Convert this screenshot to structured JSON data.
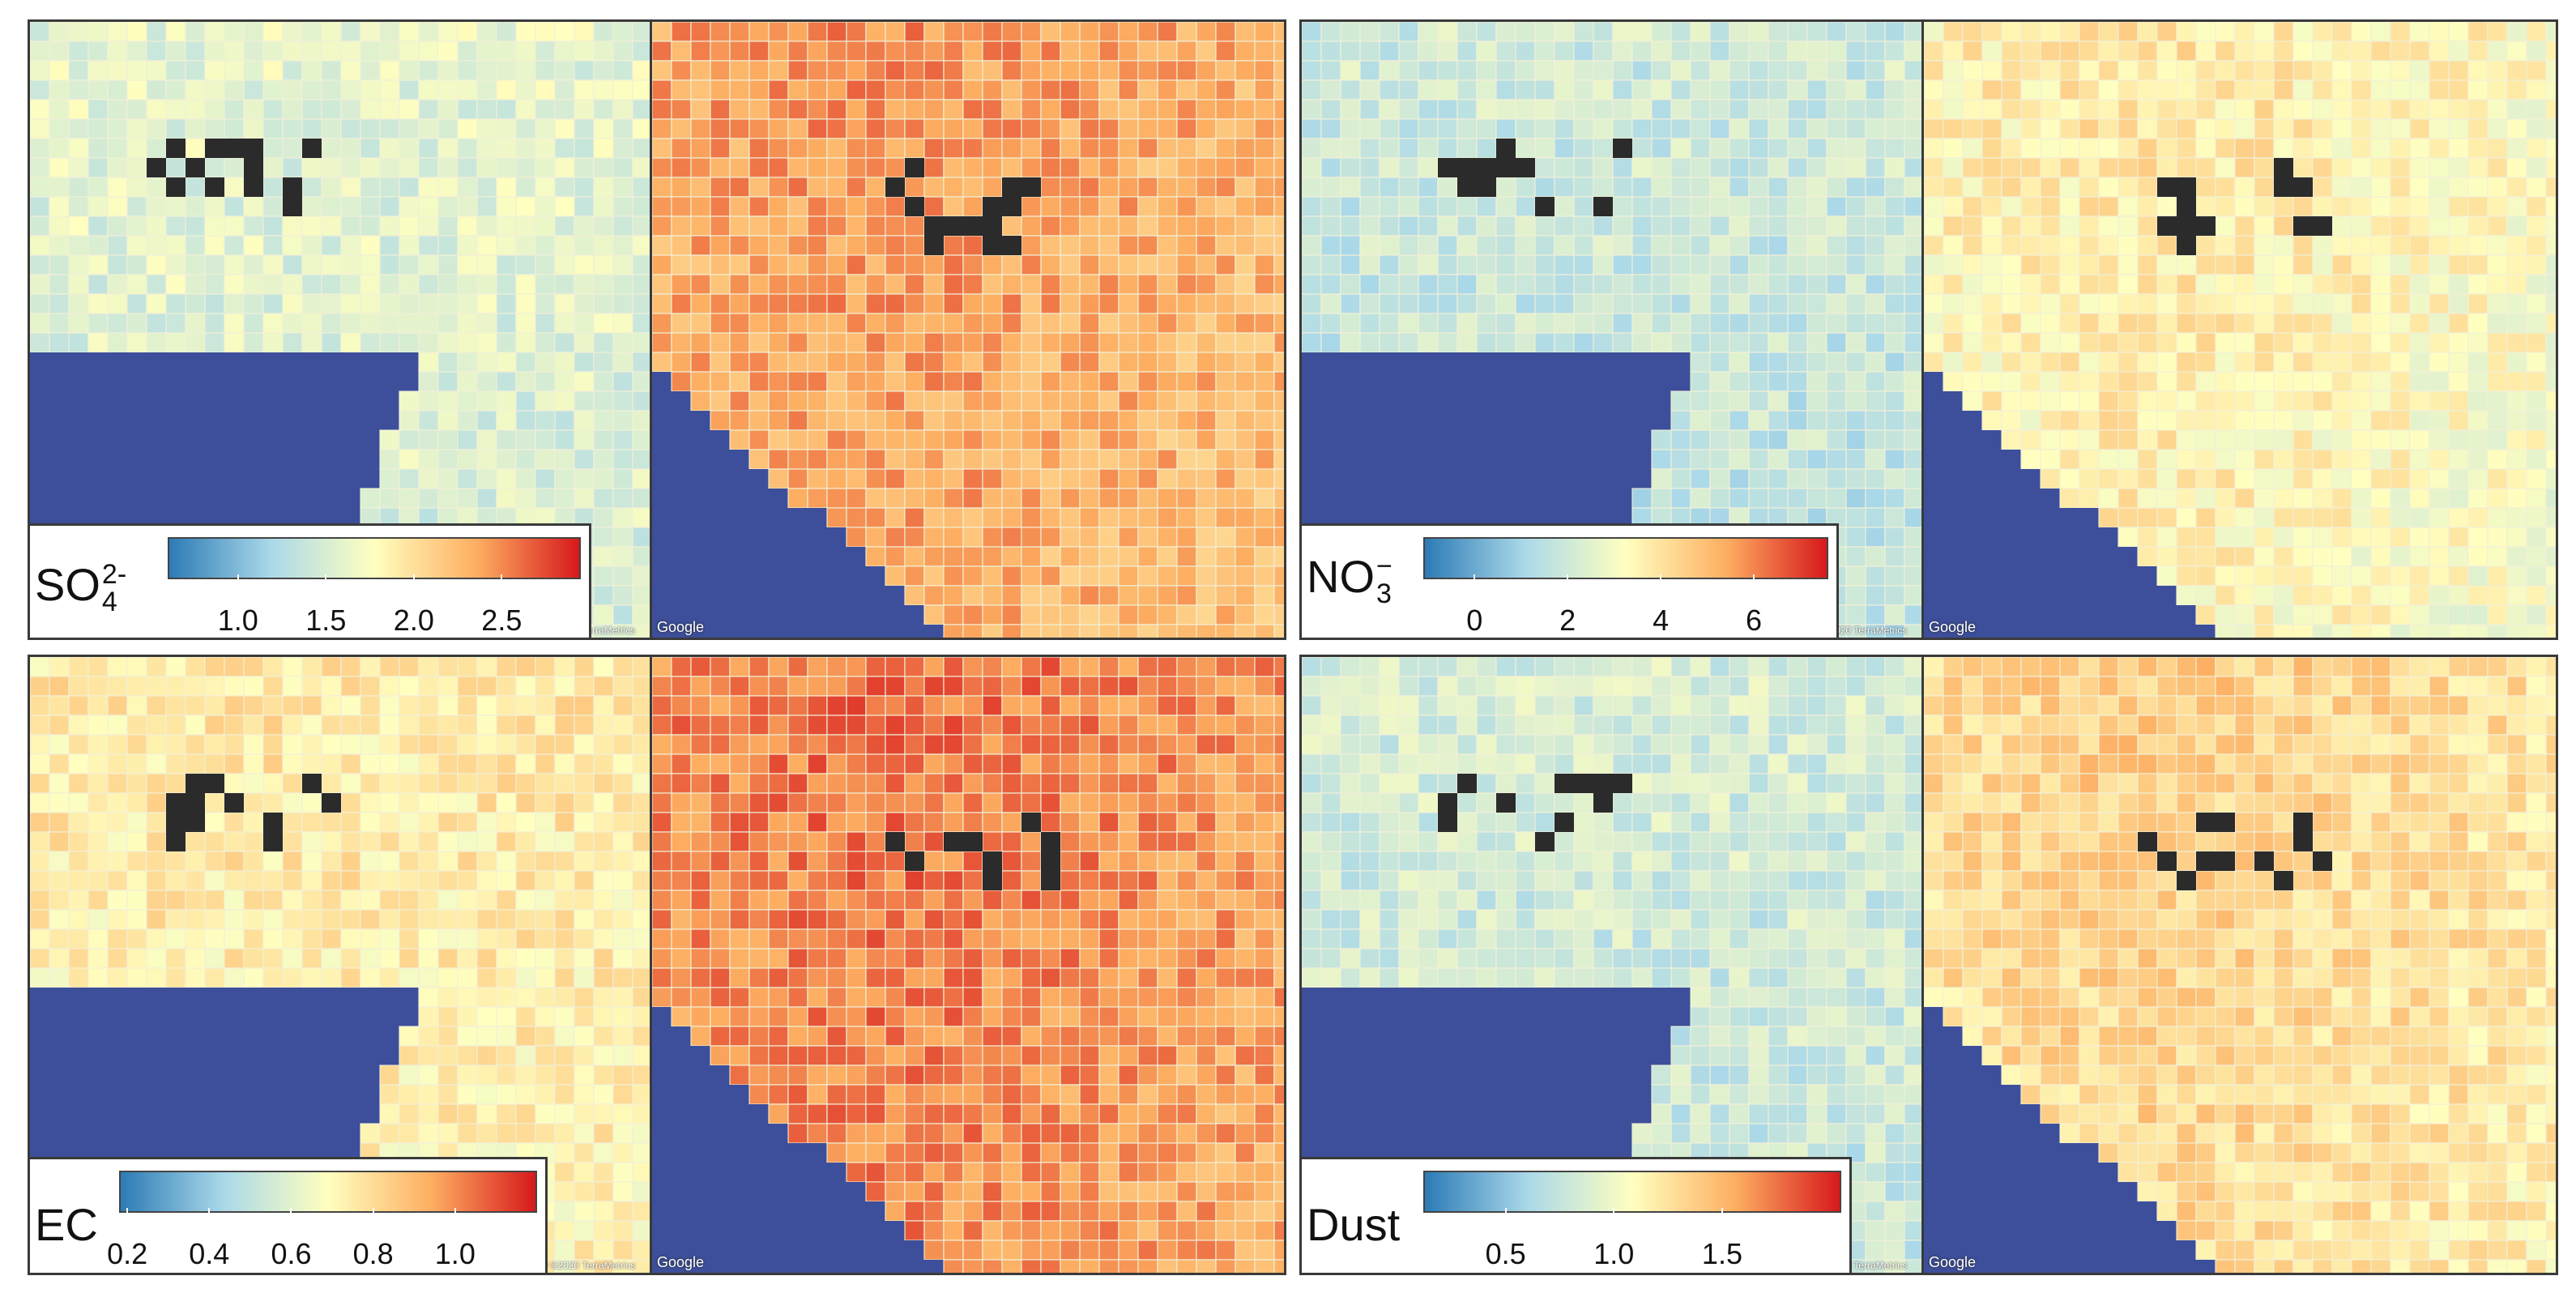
{
  "panels": [
    {
      "id": "so4",
      "name_main": "SO",
      "name_sub": "4",
      "name_sup": "2-",
      "ticks": [
        "1.0",
        "1.5",
        "2.0",
        "2.5"
      ],
      "tick_values": [
        1.0,
        1.5,
        2.0,
        2.5
      ],
      "range": [
        0.6,
        2.95
      ],
      "left_level": 0.4,
      "right_level": 0.72,
      "attribution": "Imagery ©2020 TerraMetrics",
      "map_credit": "Google"
    },
    {
      "id": "no3",
      "name_main": "NO",
      "name_sub": "3",
      "name_sup": "−",
      "ticks": [
        "0",
        "2",
        "4",
        "6"
      ],
      "tick_values": [
        0,
        2,
        4,
        6
      ],
      "range": [
        -1.1,
        7.6
      ],
      "left_level": 0.33,
      "right_level": 0.5,
      "attribution": "Imagery ©2020 TerraMetrics",
      "map_credit": "Google"
    },
    {
      "id": "ec",
      "name_main": "EC",
      "name_sub": "",
      "name_sup": "",
      "ticks": [
        "0.2",
        "0.4",
        "0.6",
        "0.8",
        "1.0"
      ],
      "tick_values": [
        0.2,
        0.4,
        0.6,
        0.8,
        1.0
      ],
      "range": [
        0.18,
        1.2
      ],
      "left_level": 0.55,
      "right_level": 0.78,
      "attribution": "Imagery ©2020 TerraMetrics",
      "map_credit": "Google"
    },
    {
      "id": "dust",
      "name_main": "Dust",
      "name_sub": "",
      "name_sup": "",
      "ticks": [
        "0.5",
        "1.0",
        "1.5"
      ],
      "tick_values": [
        0.5,
        1.0,
        1.5
      ],
      "range": [
        0.12,
        2.05
      ],
      "left_level": 0.35,
      "right_level": 0.58,
      "attribution": "Imagery ©2020 TerraMetrics",
      "map_credit": "Google"
    }
  ],
  "colors": {
    "ocean": "#3d4f9a",
    "grid_line": "#f2f0d8",
    "colormap": [
      "#2c7bb6",
      "#abd9e9",
      "#ffffbf",
      "#fdae61",
      "#d7191c"
    ]
  }
}
